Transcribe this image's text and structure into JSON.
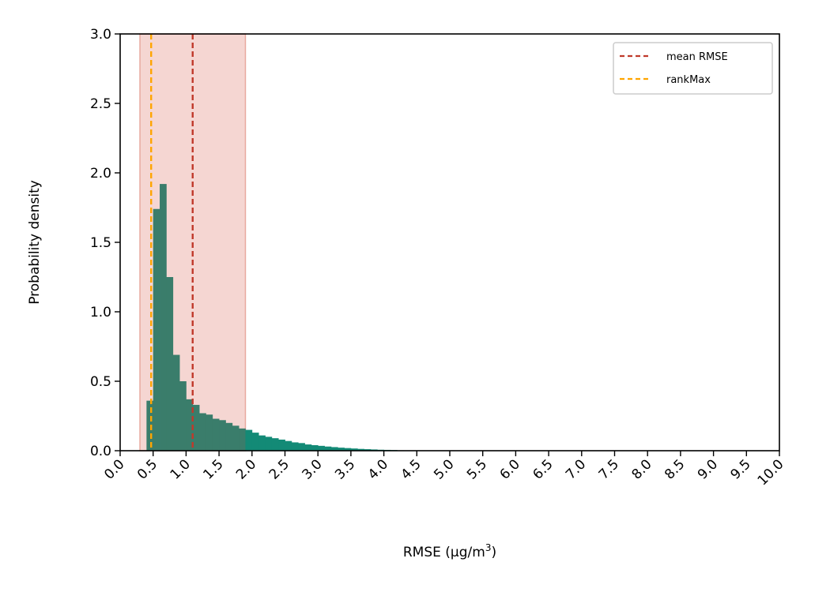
{
  "chart_data": {
    "type": "bar",
    "xlabel": "RMSE (µg/m",
    "xlabel_sup": "3",
    "xlabel_suffix": ")",
    "ylabel": "Probability density",
    "xlim": [
      0,
      10
    ],
    "ylim": [
      0,
      3
    ],
    "x_ticks": [
      "0.0",
      "0.5",
      "1.0",
      "1.5",
      "2.0",
      "2.5",
      "3.0",
      "3.5",
      "4.0",
      "4.5",
      "5.0",
      "5.5",
      "6.0",
      "6.5",
      "7.0",
      "7.5",
      "8.0",
      "8.5",
      "9.0",
      "9.5",
      "10.0"
    ],
    "y_ticks": [
      "0.0",
      "0.5",
      "1.0",
      "1.5",
      "2.0",
      "2.5",
      "3.0"
    ],
    "grid": false,
    "legend_position": "top-right",
    "bin_width": 0.1,
    "bins": [
      {
        "x0": 0.4,
        "value": 0.36
      },
      {
        "x0": 0.5,
        "value": 1.74
      },
      {
        "x0": 0.6,
        "value": 1.92
      },
      {
        "x0": 0.7,
        "value": 1.25
      },
      {
        "x0": 0.8,
        "value": 0.69
      },
      {
        "x0": 0.9,
        "value": 0.5
      },
      {
        "x0": 1.0,
        "value": 0.37
      },
      {
        "x0": 1.1,
        "value": 0.33
      },
      {
        "x0": 1.2,
        "value": 0.27
      },
      {
        "x0": 1.3,
        "value": 0.26
      },
      {
        "x0": 1.4,
        "value": 0.23
      },
      {
        "x0": 1.5,
        "value": 0.22
      },
      {
        "x0": 1.6,
        "value": 0.2
      },
      {
        "x0": 1.7,
        "value": 0.18
      },
      {
        "x0": 1.8,
        "value": 0.16
      },
      {
        "x0": 1.9,
        "value": 0.15
      },
      {
        "x0": 2.0,
        "value": 0.13
      },
      {
        "x0": 2.1,
        "value": 0.11
      },
      {
        "x0": 2.2,
        "value": 0.1
      },
      {
        "x0": 2.3,
        "value": 0.09
      },
      {
        "x0": 2.4,
        "value": 0.08
      },
      {
        "x0": 2.5,
        "value": 0.07
      },
      {
        "x0": 2.6,
        "value": 0.06
      },
      {
        "x0": 2.7,
        "value": 0.055
      },
      {
        "x0": 2.8,
        "value": 0.045
      },
      {
        "x0": 2.9,
        "value": 0.04
      },
      {
        "x0": 3.0,
        "value": 0.035
      },
      {
        "x0": 3.1,
        "value": 0.03
      },
      {
        "x0": 3.2,
        "value": 0.026
      },
      {
        "x0": 3.3,
        "value": 0.022
      },
      {
        "x0": 3.4,
        "value": 0.019
      },
      {
        "x0": 3.5,
        "value": 0.016
      },
      {
        "x0": 3.6,
        "value": 0.013
      },
      {
        "x0": 3.7,
        "value": 0.011
      },
      {
        "x0": 3.8,
        "value": 0.009
      },
      {
        "x0": 3.9,
        "value": 0.007
      },
      {
        "x0": 4.0,
        "value": 0.006
      },
      {
        "x0": 4.1,
        "value": 0.005
      },
      {
        "x0": 4.2,
        "value": 0.003
      },
      {
        "x0": 4.3,
        "value": 0.002
      }
    ],
    "shaded_band": {
      "x0": 0.3,
      "x1": 1.9,
      "color": "#f5d6d2",
      "edge_color": "#e8a99f"
    },
    "split_x": 1.9,
    "bar_color_inside": "#3a7d6b",
    "bar_color_outside": "#138a76",
    "reference_lines": [
      {
        "name": "mean RMSE",
        "x": 1.1,
        "color": "#c0392b"
      },
      {
        "name": "rankMax",
        "x": 0.47,
        "color": "#ffa500"
      }
    ]
  }
}
